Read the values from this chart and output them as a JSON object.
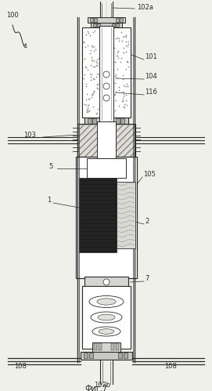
{
  "fig_width": 2.71,
  "fig_height": 4.99,
  "dpi": 100,
  "bg_color": "#f0f0eb",
  "label_100": "100",
  "label_102a": "102a",
  "label_101": "101",
  "label_104": "104",
  "label_116": "116",
  "label_103": "103",
  "label_5": "5",
  "label_105": "105",
  "label_1": "1",
  "label_2": "2",
  "label_7": "7",
  "label_108_left": "108",
  "label_108_right": "108",
  "label_102b": "102b",
  "fig_label": "Фиг.7",
  "line_color": "#2a2a2a",
  "hatch_color": "#555555"
}
